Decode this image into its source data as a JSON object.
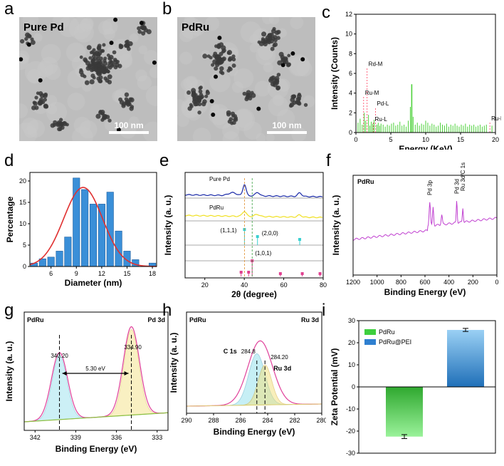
{
  "panel_letters": {
    "a": "a",
    "b": "b",
    "c": "c",
    "d": "d",
    "e": "e",
    "f": "f",
    "g": "g",
    "h": "h",
    "i": "i"
  },
  "tem": {
    "a": {
      "title": "Pure Pd",
      "scale": "100 nm"
    },
    "b": {
      "title": "PdRu",
      "scale": "100 nm"
    }
  },
  "colors": {
    "edx": "#4dd13a",
    "hist": "#3a8fd8",
    "fit": "#e03030",
    "xrd_pd": "#1a2aa8",
    "xrd_pdru": "#f0e020",
    "ref_pd": "#3ad0d0",
    "ref_ru": "#e04090",
    "xps": "#c040d0",
    "bar_pdru": "#3ecf3e",
    "bar_pei": "#2f7fd0"
  },
  "chart_data": [
    {
      "id": "c",
      "type": "bar",
      "title": "",
      "xlabel": "Energy (KeV)",
      "ylabel": "Intensity (Counts)",
      "xlim": [
        0,
        20
      ],
      "ylim": [
        0,
        12
      ],
      "xticks": [
        "0",
        "5",
        "10",
        "15",
        "20"
      ],
      "yticks": [
        "0",
        "2",
        "4",
        "6",
        "8",
        "10",
        "12"
      ],
      "peaks": [
        {
          "x": 1.6,
          "y": 6.6,
          "label": "Rd-M"
        },
        {
          "x": 1.1,
          "y": 3.7,
          "label": "Ru-M"
        },
        {
          "x": 2.8,
          "y": 2.6,
          "label": "Pd-L"
        },
        {
          "x": 2.5,
          "y": 1.0,
          "label": "Ru-L"
        },
        {
          "x": 19.2,
          "y": 1.1,
          "label": "Ru-N"
        }
      ],
      "major_line": {
        "x": 8.0,
        "y": 4.9
      },
      "background_lines": [
        0.3,
        0.6,
        0.9,
        1.2,
        1.4,
        1.8,
        2.0,
        2.2,
        2.4,
        2.6,
        3.0,
        3.2,
        3.4,
        3.6,
        3.9,
        4.2,
        4.5,
        4.8,
        5.1,
        5.4,
        5.7,
        6.0,
        6.3,
        6.6,
        6.9,
        7.2,
        7.5,
        7.8,
        8.2,
        8.5,
        8.8,
        9.1,
        9.4,
        9.7,
        10.0,
        10.3,
        10.6,
        10.9,
        11.2,
        11.5,
        11.8,
        12.1,
        12.4,
        12.7,
        13.0,
        13.3,
        13.6,
        13.9,
        14.2,
        14.5,
        14.8,
        15.1,
        15.4,
        15.7,
        16.0,
        16.3,
        16.6,
        16.9,
        17.2,
        17.5,
        17.8,
        18.1,
        18.4,
        18.7,
        19.5
      ],
      "background_heights": [
        1.0,
        1.4,
        0.8,
        2.0,
        1.2,
        1.8,
        0.7,
        1.1,
        0.9,
        1.3,
        0.8,
        1.0,
        0.7,
        0.9,
        0.8,
        0.6,
        0.8,
        0.7,
        0.9,
        1.0,
        0.7,
        0.8,
        1.1,
        0.7,
        0.8,
        0.6,
        1.2,
        2.6,
        1.6,
        0.8,
        1.0,
        0.7,
        0.9,
        0.8,
        1.2,
        1.0,
        0.7,
        0.9,
        0.8,
        0.6,
        0.7,
        1.0,
        0.8,
        0.7,
        0.9,
        0.6,
        0.8,
        0.7,
        0.9,
        0.7,
        0.6,
        0.8,
        0.7,
        0.9,
        0.6,
        0.8,
        0.7,
        0.8,
        0.6,
        0.7,
        0.8,
        0.6,
        0.7,
        0.8,
        0.7
      ]
    },
    {
      "id": "d",
      "type": "bar",
      "xlabel": "Diameter (nm)",
      "ylabel": "Percentage",
      "xlim": [
        3.5,
        18.5
      ],
      "ylim": [
        0,
        22
      ],
      "xticks": [
        "6",
        "9",
        "12",
        "15",
        "18"
      ],
      "xtick_values": [
        6,
        9,
        12,
        15,
        18
      ],
      "yticks": [
        "0",
        "5",
        "10",
        "15",
        "20"
      ],
      "ytick_values": [
        0,
        5,
        10,
        15,
        20
      ],
      "x": [
        4,
        5,
        6,
        7,
        8,
        9,
        10,
        11,
        12,
        13,
        14,
        15,
        16,
        17,
        18
      ],
      "values": [
        0.8,
        1.8,
        2.2,
        3.6,
        6.9,
        20.7,
        18.0,
        14.6,
        14.6,
        17.4,
        8.3,
        3.6,
        1.6,
        0,
        0.8
      ],
      "fit": {
        "mean": 9.8,
        "peak": 18.5,
        "sigma": 2.3
      }
    },
    {
      "id": "e",
      "type": "line",
      "xlabel": "2θ (degree)",
      "ylabel": "Intensity (a. u.)",
      "xlim": [
        10,
        80
      ],
      "xticks": [
        "20",
        "40",
        "60",
        "80"
      ],
      "xtick_values": [
        20,
        40,
        60,
        80
      ],
      "series": [
        {
          "name": "Pure Pd"
        },
        {
          "name": "PdRu"
        }
      ],
      "ref_pd": {
        "label_111": "(1,1,1)",
        "label_200": "(2,0,0)",
        "sticks": [
          40.1,
          46.7,
          68.1
        ]
      },
      "ref_ru": {
        "label_101": "(1,0,1)",
        "sticks": [
          38.4,
          42.2,
          44.0,
          58.3,
          69.4,
          78.4
        ]
      },
      "dashes": [
        40.1,
        44.0
      ]
    },
    {
      "id": "f",
      "type": "line",
      "title": "PdRu",
      "xlabel": "Binding Energy (eV)",
      "ylabel": "Intensity (a. u.)",
      "xlim": [
        1200,
        0
      ],
      "xticks": [
        "1200",
        "1000",
        "800",
        "600",
        "400",
        "200",
        "0"
      ],
      "xtick_values": [
        1200,
        1000,
        800,
        600,
        400,
        200,
        0
      ],
      "annotations": [
        {
          "x": 560,
          "label": "Pd 3p"
        },
        {
          "x": 335,
          "label": "Pd 3d"
        },
        {
          "x": 284,
          "label": "Ru 3d/C 1s"
        }
      ]
    },
    {
      "id": "g",
      "type": "line",
      "title": "PdRu",
      "subtitle": "Pd 3d",
      "xlabel": "Binding Energy (eV)",
      "ylabel": "Intensity (a. u.)",
      "xlim": [
        342.8,
        332.2
      ],
      "xticks": [
        "342",
        "339",
        "336",
        "333"
      ],
      "xtick_values": [
        342,
        339,
        336,
        333
      ],
      "peaks": [
        {
          "x": 340.2,
          "label": "340.20"
        },
        {
          "x": 334.9,
          "label": "334.90"
        }
      ],
      "split": "5.30 eV"
    },
    {
      "id": "h",
      "type": "line",
      "title": "PdRu",
      "subtitle": "Ru 3d",
      "xlabel": "Binding Energy (eV)",
      "ylabel": "Intensity (a. u.)",
      "xlim": [
        290,
        280
      ],
      "xticks": [
        "290",
        "288",
        "286",
        "284",
        "282",
        "280"
      ],
      "xtick_values": [
        290,
        288,
        286,
        284,
        282,
        280
      ],
      "peaks": [
        {
          "x": 284.8,
          "label": "284.8",
          "name": "C 1s"
        },
        {
          "x": 284.2,
          "label": "284.20",
          "name": "Ru 3d"
        }
      ]
    },
    {
      "id": "i",
      "type": "bar",
      "ylabel": "Zeta Potential (mV)",
      "ylim": [
        -30,
        30
      ],
      "yticks": [
        "-30",
        "-20",
        "-10",
        "0",
        "10",
        "20",
        "30"
      ],
      "ytick_values": [
        -30,
        -20,
        -10,
        0,
        10,
        20,
        30
      ],
      "categories": [
        "PdRu",
        "PdRu@PEI"
      ],
      "values": [
        -22.5,
        25.8
      ],
      "errors": [
        0.9,
        0.7
      ]
    }
  ]
}
